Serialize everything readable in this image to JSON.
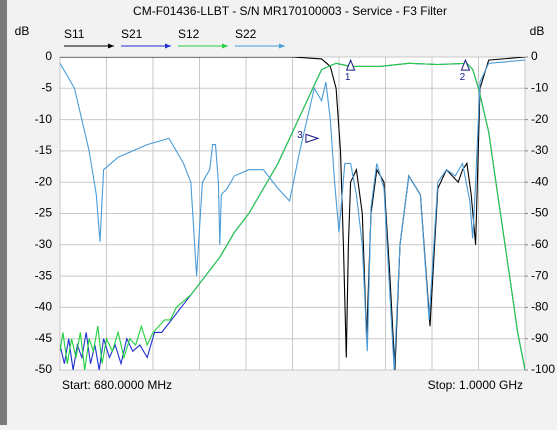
{
  "chart_data": {
    "type": "line",
    "title": "CM-F01436-LLBT - S/N MR170100003 - Service - F3 Filter",
    "y_label": "dB",
    "y2_label": "dB",
    "start_label": "Start: 680.0000 MHz",
    "stop_label": "Stop: 1.0000 GHz",
    "xlim": [
      680,
      1000
    ],
    "xticks": [
      680,
      712,
      744,
      776,
      808,
      840,
      872,
      904,
      936,
      968,
      1000
    ],
    "ylim": [
      -50,
      0
    ],
    "yticks": [
      0,
      -5,
      -10,
      -15,
      -20,
      -25,
      -30,
      -35,
      -40,
      -45,
      -50
    ],
    "y2lim": [
      -100,
      0
    ],
    "y2ticks": [
      0,
      -10,
      -20,
      -30,
      -40,
      -50,
      -60,
      -70,
      -80,
      -90,
      -100
    ],
    "grid": true,
    "series": [
      {
        "name": "S11",
        "color": "#000000",
        "x": [
          680,
          760,
          840,
          860,
          866,
          870,
          873,
          875,
          877,
          878.5,
          880,
          884,
          888,
          891,
          894,
          898,
          903,
          907,
          910.5,
          914,
          920,
          928,
          934.6,
          940,
          946,
          950,
          954,
          957,
          960,
          963,
          966,
          969,
          975,
          1000
        ],
        "values": [
          0,
          0,
          0,
          -0.3,
          -1.5,
          -5,
          -15,
          -30,
          -48,
          -30,
          -20,
          -18,
          -25,
          -45,
          -25,
          -18,
          -20,
          -35,
          -50,
          -30,
          -19,
          -22,
          -43,
          -21,
          -18,
          -19,
          -20,
          -18,
          -17,
          -22,
          -30,
          -5,
          -0.5,
          0
        ]
      },
      {
        "name": "S21",
        "color": "#1f2fd0",
        "x": [
          680,
          683,
          686,
          689,
          692,
          695,
          698,
          701,
          704,
          707,
          710,
          714,
          718,
          722,
          726,
          730,
          735,
          740,
          745,
          750,
          760,
          770,
          780,
          790,
          800,
          810,
          820,
          830,
          840,
          850,
          860,
          870,
          880,
          900,
          920,
          940,
          960,
          964,
          968,
          975,
          980,
          985,
          990,
          995,
          1000
        ],
        "values": [
          -46,
          -49,
          -45,
          -50,
          -46,
          -48,
          -44,
          -49,
          -46,
          -50,
          -45,
          -48,
          -46,
          -49,
          -45,
          -47,
          -46,
          -48,
          -44,
          -44,
          -41,
          -38,
          -35,
          -32,
          -28,
          -25,
          -21,
          -17,
          -12,
          -7,
          -2,
          -1,
          -1.5,
          -1.5,
          -1,
          -1.2,
          -1,
          -2,
          -5,
          -12,
          -20,
          -28,
          -36,
          -44,
          -50
        ]
      },
      {
        "name": "S12",
        "color": "#22d040",
        "x": [
          680,
          682,
          685,
          688,
          691,
          694,
          697,
          700,
          703,
          706,
          709,
          712,
          716,
          720,
          724,
          728,
          732,
          736,
          740,
          744,
          748,
          752,
          756,
          760,
          770,
          780,
          790,
          800,
          810,
          820,
          830,
          840,
          850,
          860,
          870,
          880,
          900,
          920,
          940,
          960,
          964,
          968,
          975,
          980,
          985,
          990,
          995,
          1000
        ],
        "values": [
          -47,
          -44,
          -49,
          -45,
          -48,
          -44,
          -50,
          -45,
          -47,
          -43,
          -49,
          -45,
          -47,
          -44,
          -48,
          -45,
          -46,
          -43,
          -46,
          -44,
          -43,
          -42,
          -42,
          -40,
          -38,
          -35,
          -32,
          -28,
          -25,
          -21,
          -17,
          -12,
          -7,
          -2,
          -1,
          -1.5,
          -1.5,
          -1,
          -1.2,
          -1,
          -2,
          -5,
          -12,
          -20,
          -28,
          -36,
          -44,
          -50
        ]
      },
      {
        "name": "S22",
        "color": "#4a9cd8",
        "x": [
          680,
          690,
          700,
          705,
          707.5,
          710,
          720,
          740,
          755,
          765,
          770,
          774,
          778,
          783,
          785,
          787,
          789,
          790,
          791,
          795,
          800,
          810,
          820,
          830,
          838,
          845,
          850,
          855,
          860,
          863,
          866,
          869,
          872,
          876,
          880,
          884,
          888,
          891.5,
          894,
          898,
          903,
          907,
          910,
          914,
          920,
          928,
          934,
          940,
          946,
          952,
          957,
          962,
          964,
          966,
          969,
          975,
          1000
        ],
        "values": [
          -1,
          -5,
          -15,
          -22,
          -29.5,
          -18,
          -16,
          -14,
          -13,
          -17,
          -20,
          -35,
          -20,
          -18,
          -14,
          -14,
          -20,
          -30,
          -22,
          -21,
          -19,
          -18,
          -18,
          -21,
          -23,
          -15,
          -10,
          -5,
          -7,
          -4,
          -10,
          -20,
          -28,
          -17,
          -17,
          -22,
          -30,
          -47,
          -24,
          -17,
          -21,
          -38,
          -50,
          -30,
          -19,
          -22,
          -42,
          -20,
          -18,
          -19,
          -17,
          -23,
          -29,
          -20,
          -4,
          -1,
          -0.5
        ]
      }
    ],
    "markers": [
      {
        "label": "1",
        "x": 880,
        "y": -0.5,
        "direction": "up"
      },
      {
        "label": "2",
        "x": 959,
        "y": -0.5,
        "direction": "up"
      },
      {
        "label": "3",
        "x": 857.5,
        "y": -13,
        "direction": "right"
      }
    ]
  }
}
